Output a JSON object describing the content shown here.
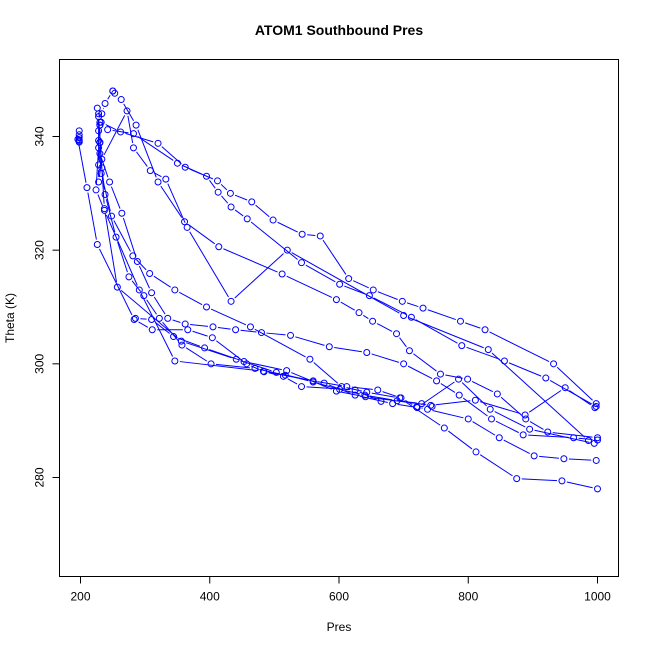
{
  "chart_data": {
    "type": "line",
    "title": "ATOM1 Southbound Pres",
    "xlabel": "Pres",
    "ylabel": "Theta (K)",
    "xlim": [
      200,
      1000
    ],
    "ylim": [
      262,
      352
    ],
    "x_ticks": [
      200,
      400,
      600,
      800,
      1000
    ],
    "y_ticks": [
      280,
      300,
      320,
      340
    ],
    "grid": false,
    "legend": "none",
    "colors": {
      "series": "#0000ff",
      "axis": "#000000"
    },
    "series": [
      {
        "x": [
          198,
          198,
          198,
          198,
          198,
          198
        ],
        "y": [
          341,
          340.3,
          339.8,
          339.4,
          339.0,
          339.2
        ]
      },
      {
        "x": [
          1000,
          945,
          875,
          812,
          763,
          694,
          643,
          604,
          555,
          463,
          395,
          346,
          307,
          281,
          248,
          232,
          228,
          230,
          233,
          238,
          250
        ],
        "y": [
          278,
          279.4,
          279.8,
          284.5,
          288.7,
          294.0,
          295.0,
          296.0,
          300.8,
          306.5,
          310.0,
          313.0,
          315.9,
          319.0,
          326.0,
          333.5,
          339.3,
          342.5,
          344.0,
          345.8,
          348.0
        ]
      },
      {
        "x": [
          998,
          948,
          902,
          848,
          800,
          737,
          720,
          696,
          660,
          612,
          560,
          517,
          470,
          402,
          357,
          322,
          298,
          275,
          255,
          238,
          233,
          230,
          230
        ],
        "y": [
          283,
          283.3,
          283.8,
          287.0,
          290.3,
          292.0,
          292.4,
          294.0,
          295.4,
          296.0,
          297.0,
          298.0,
          299.2,
          300.0,
          303.3,
          308.0,
          312.0,
          315.3,
          322.3,
          329.8,
          334.5,
          338.9,
          342.0
        ]
      },
      {
        "x": [
          1000,
          963,
          885,
          836,
          786,
          751,
          700,
          643,
          585,
          525,
          480,
          440,
          405,
          362,
          335,
          310,
          288,
          264,
          245,
          230,
          230
        ],
        "y": [
          286.6,
          287.0,
          287.5,
          290.3,
          294.5,
          297.0,
          300.0,
          302.0,
          303.0,
          305.0,
          305.5,
          306.0,
          306.5,
          307.0,
          308.0,
          312.5,
          318.0,
          326.5,
          332.0,
          337.0,
          339.0
        ]
      },
      {
        "x": [
          998,
          920,
          856,
          790,
          712,
          647,
          601,
          542,
          458,
          433,
          413,
          395,
          350,
          282,
          242,
          230
        ],
        "y": [
          292.5,
          297.5,
          300.5,
          303.2,
          308.2,
          312.0,
          314.0,
          317.8,
          325.5,
          327.6,
          330.2,
          333.0,
          335.3,
          340.5,
          341.2,
          342.0
        ]
      },
      {
        "x": [
          998,
          932,
          826,
          788,
          730,
          698,
          653,
          615,
          571,
          543,
          498,
          465,
          432,
          412,
          362,
          320,
          262,
          232,
          226
        ],
        "y": [
          293.0,
          300.0,
          306.0,
          307.5,
          309.8,
          311.0,
          313.0,
          315.0,
          322.5,
          322.8,
          325.3,
          328.5,
          330.0,
          332.2,
          334.6,
          338.8,
          340.8,
          342.5,
          345.0
        ]
      },
      {
        "x": [
          1000,
          923,
          889,
          845,
          799,
          757,
          709,
          689,
          652,
          631,
          596,
          512,
          414,
          361,
          320,
          286,
          263,
          253,
          250
        ],
        "y": [
          287.0,
          288.0,
          290.3,
          294.7,
          297.3,
          298.2,
          302.3,
          305.3,
          307.5,
          309.0,
          311.3,
          315.8,
          320.6,
          325.0,
          332.0,
          342.0,
          346.5,
          347.6,
          348.0
        ]
      },
      {
        "x": [
          986,
          831,
          700,
          520,
          433,
          365,
          332,
          308,
          282,
          272,
          233,
          228,
          228,
          228
        ],
        "y": [
          286.5,
          302.5,
          308.5,
          320.0,
          311.0,
          324.0,
          332.5,
          334.0,
          338.0,
          344.5,
          336.0,
          332.0,
          335.0,
          344.0
        ]
      },
      {
        "x": [
          744,
          728,
          690,
          640,
          601,
          560,
          503,
          441,
          356,
          257,
          237,
          228
        ],
        "y": [
          292.5,
          293.0,
          293.5,
          294.5,
          295.5,
          296.8,
          298.5,
          300.8,
          304.0,
          313.5,
          327.3,
          343.5
        ]
      },
      {
        "x": [
          995,
          895,
          834,
          785,
          721,
          683,
          625,
          577,
          483,
          346,
          291,
          237,
          224,
          228,
          228
        ],
        "y": [
          286.0,
          288.5,
          292.0,
          297.3,
          292.3,
          293.0,
          294.5,
          296.6,
          298.7,
          300.5,
          313.0,
          327.0,
          330.6,
          338.0,
          341.0
        ]
      },
      {
        "x": [
          665,
          625,
          542,
          514,
          484,
          457,
          404,
          366,
          311,
          283,
          226,
          210,
          196
        ],
        "y": [
          293.4,
          295.4,
          296.0,
          297.8,
          298.6,
          300.0,
          304.6,
          306.0,
          306.0,
          307.8,
          321.0,
          331.0,
          339.5
        ]
      },
      {
        "x": [
          996,
          950,
          888,
          811,
          742,
          641,
          596,
          519,
          453,
          392,
          344,
          310,
          285
        ],
        "y": [
          292.3,
          295.8,
          291.0,
          293.6,
          292.7,
          294.2,
          295.2,
          298.8,
          300.4,
          302.8,
          304.8,
          307.8,
          308.0
        ]
      }
    ]
  }
}
